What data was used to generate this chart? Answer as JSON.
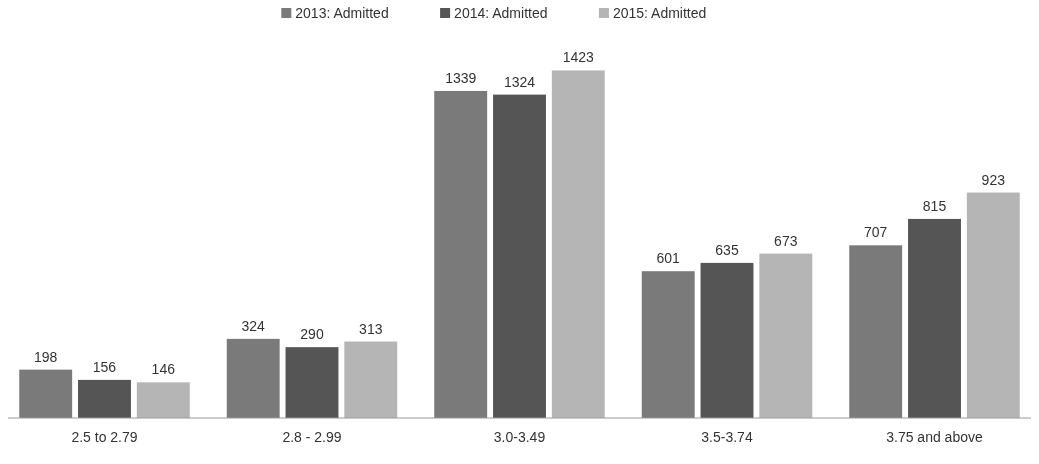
{
  "chart_data": {
    "type": "bar",
    "categories": [
      "2.5 to 2.79",
      "2.8 - 2.99",
      "3.0-3.49",
      "3.5-3.74",
      "3.75 and above"
    ],
    "series": [
      {
        "name": "2013: Admitted",
        "color": "#7a7a7a",
        "values": [
          198,
          324,
          1339,
          601,
          707
        ]
      },
      {
        "name": "2014: Admitted",
        "color": "#555555",
        "values": [
          156,
          290,
          1324,
          635,
          815
        ]
      },
      {
        "name": "2015: Admitted",
        "color": "#b5b5b5",
        "values": [
          146,
          313,
          1423,
          673,
          923
        ]
      }
    ],
    "data_labels": true,
    "legend": "top"
  }
}
